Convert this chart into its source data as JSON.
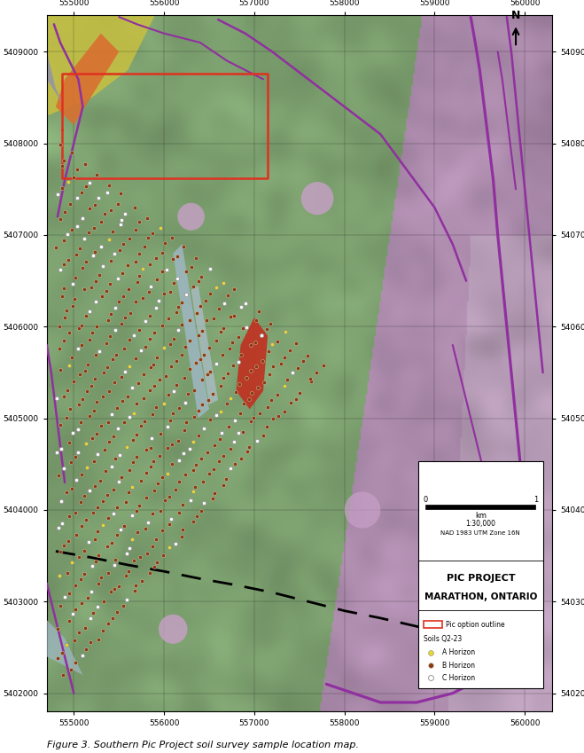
{
  "title": "Figure 3. Southern Pic Project soil survey sample location map.",
  "map_title_line1": "PIC PROJECT",
  "map_title_line2": "MARATHON, ONTARIO",
  "projection": "NAD 1983 UTM Zone 16N",
  "scale_text": "1:30,000",
  "xlim": [
    554700,
    560300
  ],
  "ylim": [
    5401800,
    5409400
  ],
  "xticks": [
    555000,
    556000,
    557000,
    558000,
    559000,
    560000
  ],
  "yticks": [
    5402000,
    5403000,
    5404000,
    5405000,
    5406000,
    5407000,
    5408000,
    5409000
  ],
  "figsize": [
    6.59,
    8.49
  ],
  "dpi": 100,
  "purple_color": "#9030a0",
  "red_outline_color": "#e03020",
  "A_color": "#e8d830",
  "B_color": "#8B3A10",
  "C_color": "#ffffff",
  "green_terrain": "#90c080",
  "pink_geology": "#c090c0"
}
